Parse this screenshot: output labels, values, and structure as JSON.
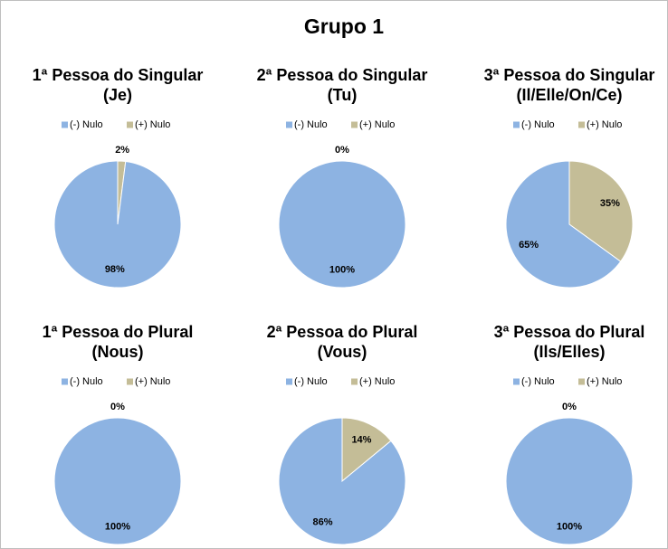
{
  "title": "Grupo 1",
  "chart_data": [
    {
      "type": "pie",
      "title": [
        "1ª Pessoa do Singular",
        "(Je)"
      ],
      "categories": [
        "(-) Nulo",
        "(+) Nulo"
      ],
      "values": [
        98,
        2
      ],
      "value_labels": [
        "98%",
        "2%"
      ],
      "colors": [
        "#8db3e2",
        "#c4bd97"
      ]
    },
    {
      "type": "pie",
      "title": [
        "2ª Pessoa do Singular",
        "(Tu)"
      ],
      "categories": [
        "(-) Nulo",
        "(+) Nulo"
      ],
      "values": [
        100,
        0
      ],
      "value_labels": [
        "100%",
        "0%"
      ],
      "colors": [
        "#8db3e2",
        "#c4bd97"
      ]
    },
    {
      "type": "pie",
      "title": [
        "3ª Pessoa do Singular",
        "(Il/Elle/On/Ce)"
      ],
      "categories": [
        "(-) Nulo",
        "(+) Nulo"
      ],
      "values": [
        65,
        35
      ],
      "value_labels": [
        "65%",
        "35%"
      ],
      "colors": [
        "#8db3e2",
        "#c4bd97"
      ]
    },
    {
      "type": "pie",
      "title": [
        "1ª Pessoa do Plural",
        "(Nous)"
      ],
      "categories": [
        "(-) Nulo",
        "(+) Nulo"
      ],
      "values": [
        100,
        0
      ],
      "value_labels": [
        "100%",
        "0%"
      ],
      "colors": [
        "#8db3e2",
        "#c4bd97"
      ]
    },
    {
      "type": "pie",
      "title": [
        "2ª Pessoa do Plural",
        "(Vous)"
      ],
      "categories": [
        "(-) Nulo",
        "(+) Nulo"
      ],
      "values": [
        86,
        14
      ],
      "value_labels": [
        "86%",
        "14%"
      ],
      "colors": [
        "#8db3e2",
        "#c4bd97"
      ]
    },
    {
      "type": "pie",
      "title": [
        "3ª Pessoa do Plural",
        "(Ils/Elles)"
      ],
      "categories": [
        "(-) Nulo",
        "(+) Nulo"
      ],
      "values": [
        100,
        0
      ],
      "value_labels": [
        "100%",
        "0%"
      ],
      "colors": [
        "#8db3e2",
        "#c4bd97"
      ]
    }
  ]
}
